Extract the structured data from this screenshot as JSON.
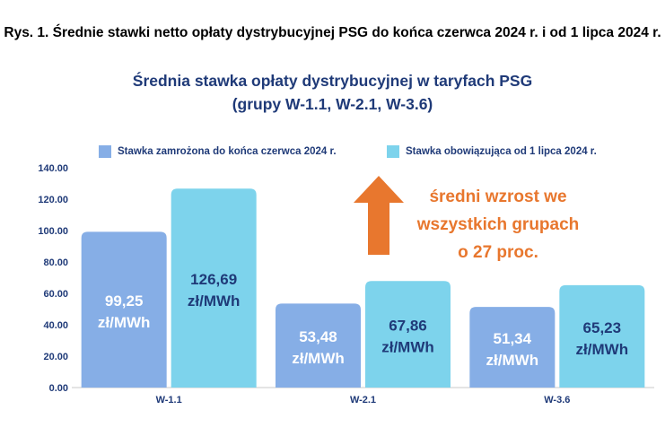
{
  "caption": "Rys. 1. Średnie stawki netto opłaty dystrybucyjnej PSG do końca czerwca 2024 r. i od 1 lipca 2024 r.",
  "colors": {
    "series1": "#86aee6",
    "series2": "#7dd3ec",
    "title": "#1f3a78",
    "annotation": "#e8772e",
    "label_light": "#ffffff",
    "label_dark": "#1f3a78"
  },
  "annotation": {
    "lines": [
      "średni wzrost we",
      "wszystkich grupach",
      "o 27 proc."
    ],
    "icon": "up-arrow-icon"
  },
  "chart_data": {
    "type": "bar",
    "title": "Średnia stawka opłaty dystrybucyjnej w taryfach PSG",
    "subtitle": "(grupy W-1.1, W-2.1, W-3.6)",
    "categories": [
      "W-1.1",
      "W-2.1",
      "W-3.6"
    ],
    "series": [
      {
        "name": "Stawka zamrożona do końca czerwca 2024 r.",
        "values": [
          99.25,
          53.48,
          51.34
        ],
        "labels": [
          "99,25",
          "53,48",
          "51,34"
        ]
      },
      {
        "name": "Stawka obowiązująca od 1 lipca 2024 r.",
        "values": [
          126.69,
          67.86,
          65.23
        ],
        "labels": [
          "126,69",
          "67,86",
          "65,23"
        ]
      }
    ],
    "unit": "zł/MWh",
    "ylim": [
      0,
      140
    ],
    "yticks": [
      "0.00",
      "20.00",
      "40.00",
      "60.00",
      "80.00",
      "100.00",
      "120.00",
      "140.00"
    ],
    "legend_position": "top",
    "grid": false
  }
}
